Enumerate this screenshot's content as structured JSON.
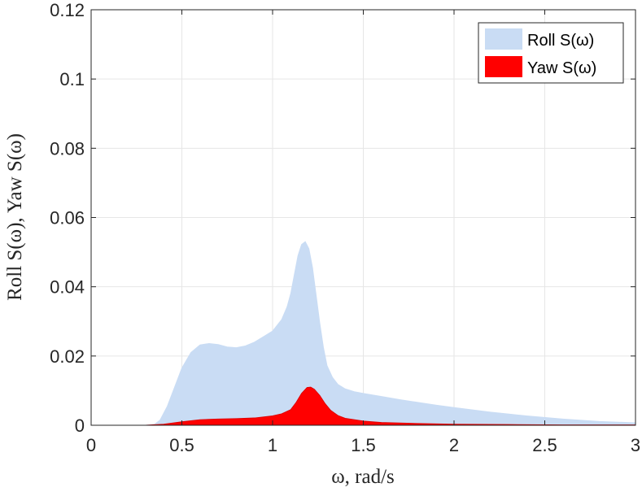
{
  "chart_data": {
    "type": "area",
    "xlabel": "ω, rad/s",
    "ylabel": "Roll S(ω), Yaw S(ω)",
    "xlim": [
      0,
      3
    ],
    "ylim": [
      0,
      0.12
    ],
    "xticks": [
      0,
      0.5,
      1,
      1.5,
      2,
      2.5,
      3
    ],
    "xtick_labels": [
      "0",
      "0.5",
      "1",
      "1.5",
      "2",
      "2.5",
      "3"
    ],
    "yticks": [
      0,
      0.02,
      0.04,
      0.06,
      0.08,
      0.1,
      0.12
    ],
    "ytick_labels": [
      "0",
      "0.02",
      "0.04",
      "0.06",
      "0.08",
      "0.1",
      "0.12"
    ],
    "grid": true,
    "legend_position": "top-right",
    "series": [
      {
        "name": "Roll S(ω)",
        "color": "#c9dcf4",
        "x": [
          0,
          0.3,
          0.35,
          0.38,
          0.42,
          0.46,
          0.5,
          0.55,
          0.6,
          0.65,
          0.7,
          0.75,
          0.8,
          0.85,
          0.9,
          0.95,
          1.0,
          1.05,
          1.08,
          1.1,
          1.12,
          1.14,
          1.16,
          1.18,
          1.2,
          1.22,
          1.24,
          1.26,
          1.28,
          1.3,
          1.33,
          1.36,
          1.4,
          1.45,
          1.5,
          1.6,
          1.7,
          1.8,
          1.9,
          2.0,
          2.2,
          2.4,
          2.6,
          2.8,
          3.0
        ],
        "values": [
          0,
          0,
          0.0003,
          0.0015,
          0.0055,
          0.011,
          0.0165,
          0.021,
          0.0232,
          0.0236,
          0.0233,
          0.0226,
          0.0224,
          0.0229,
          0.024,
          0.0256,
          0.0272,
          0.0305,
          0.0342,
          0.038,
          0.0435,
          0.049,
          0.0522,
          0.053,
          0.051,
          0.0455,
          0.0375,
          0.0295,
          0.0225,
          0.0172,
          0.0138,
          0.0118,
          0.0105,
          0.0097,
          0.0092,
          0.0083,
          0.0074,
          0.0066,
          0.0058,
          0.0051,
          0.0038,
          0.0027,
          0.0018,
          0.0011,
          0.0007
        ]
      },
      {
        "name": "Yaw S(ω)",
        "color": "#ff0000",
        "x": [
          0,
          0.3,
          0.4,
          0.5,
          0.6,
          0.7,
          0.8,
          0.9,
          1.0,
          1.05,
          1.1,
          1.13,
          1.16,
          1.19,
          1.21,
          1.23,
          1.26,
          1.29,
          1.32,
          1.36,
          1.4,
          1.5,
          1.6,
          1.8,
          2.0,
          2.3,
          2.6,
          3.0
        ],
        "values": [
          0,
          0,
          0.0003,
          0.001,
          0.0016,
          0.0018,
          0.0019,
          0.0021,
          0.0027,
          0.0033,
          0.0045,
          0.0066,
          0.0092,
          0.0109,
          0.011,
          0.0104,
          0.0086,
          0.0062,
          0.0043,
          0.0028,
          0.002,
          0.0012,
          0.0008,
          0.0005,
          0.0003,
          0.0002,
          0.0001,
          0.0001
        ]
      }
    ]
  }
}
